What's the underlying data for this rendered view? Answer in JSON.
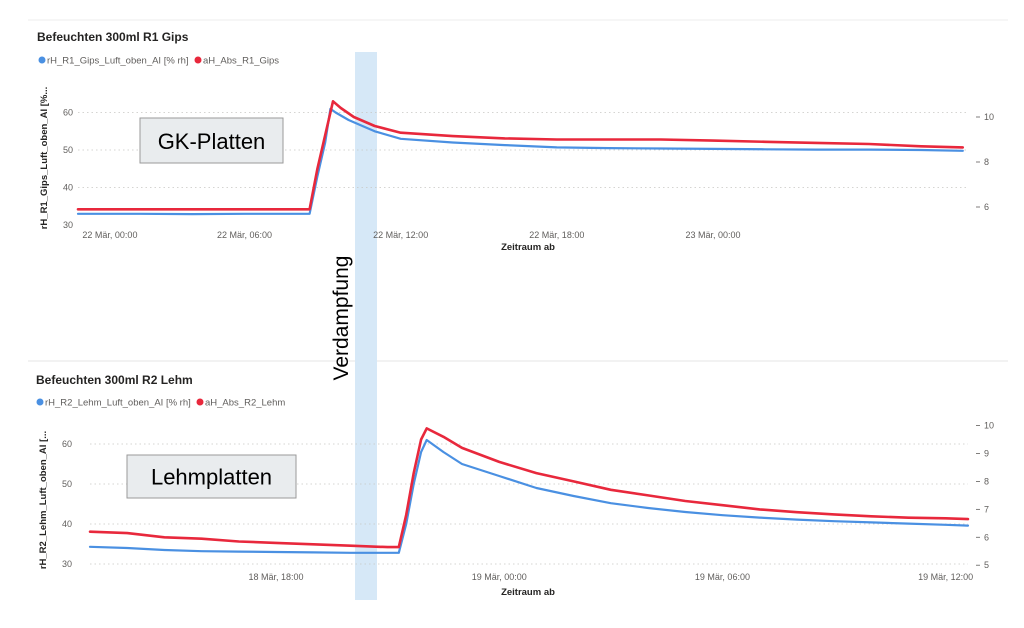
{
  "colors": {
    "rh": "#4a90e2",
    "ah": "#e8283c",
    "band": "#d6e8f7",
    "grid": "#c8c6c4",
    "label_box_bg": "#e9ecee",
    "label_box_border": "#9a9a9a"
  },
  "band_label": "Verdampfung",
  "chart_data": [
    {
      "type": "line",
      "title": "Befeuchten 300ml R1 Gips",
      "overlay_label": "GK-Platten",
      "xlabel": "Zeitraum ab",
      "ylabel": "rH_R1_Gips_Luft_oben_AI [%...",
      "x_unit": "hours since 22 Mär, 00:00",
      "xlim": [
        -0.4,
        33.8
      ],
      "x_ticks": [
        {
          "x": 0,
          "label": "22 Mär, 00:00"
        },
        {
          "x": 6,
          "label": "22 Mär, 06:00"
        },
        {
          "x": 12,
          "label": "22 Mär, 12:00"
        },
        {
          "x": 18,
          "label": "22 Mär, 18:00"
        },
        {
          "x": 24,
          "label": "23 Mär, 00:00"
        }
      ],
      "ylim": [
        30,
        66
      ],
      "y_ticks": [
        30,
        40,
        50,
        60
      ],
      "y2lim": [
        5.2,
        11.2
      ],
      "y2_ticks": [
        6,
        8,
        10
      ],
      "band": [
        8.5,
        9.2
      ],
      "legend": [
        {
          "name": "rH_R1_Gips_Luft_oben_AI [% rh]",
          "color_key": "rh"
        },
        {
          "name": "aH_Abs_R1_Gips",
          "color_key": "ah"
        }
      ],
      "series": [
        {
          "name": "rH_R1_Gips_Luft_oben_AI [% rh]",
          "axis": "left",
          "color_key": "rh",
          "points": [
            [
              -0.4,
              33
            ],
            [
              2,
              33
            ],
            [
              4,
              32.9
            ],
            [
              6,
              33
            ],
            [
              8.5,
              33
            ],
            [
              8.8,
              43
            ],
            [
              9.1,
              52
            ],
            [
              9.3,
              61
            ],
            [
              9.5,
              60
            ],
            [
              10,
              58
            ],
            [
              11,
              55
            ],
            [
              12,
              53
            ],
            [
              14,
              52
            ],
            [
              16,
              51.3
            ],
            [
              18,
              50.7
            ],
            [
              20,
              50.5
            ],
            [
              22,
              50.4
            ],
            [
              24,
              50.3
            ],
            [
              26,
              50.2
            ],
            [
              28,
              50.1
            ],
            [
              30,
              50.1
            ],
            [
              32,
              50
            ],
            [
              33.6,
              49.8
            ]
          ]
        },
        {
          "name": "aH_Abs_R1_Gips",
          "axis": "right",
          "color_key": "ah",
          "points": [
            [
              -0.4,
              5.9
            ],
            [
              2,
              5.9
            ],
            [
              4,
              5.9
            ],
            [
              6,
              5.9
            ],
            [
              8.5,
              5.9
            ],
            [
              8.8,
              7.7
            ],
            [
              9.1,
              9.2
            ],
            [
              9.4,
              10.7
            ],
            [
              9.7,
              10.4
            ],
            [
              10.2,
              10
            ],
            [
              11,
              9.6
            ],
            [
              12,
              9.3
            ],
            [
              14,
              9.15
            ],
            [
              16,
              9.05
            ],
            [
              18,
              9.0
            ],
            [
              20,
              9.0
            ],
            [
              22,
              9.0
            ],
            [
              24,
              8.95
            ],
            [
              26,
              8.9
            ],
            [
              28,
              8.85
            ],
            [
              30,
              8.8
            ],
            [
              32,
              8.7
            ],
            [
              33.6,
              8.65
            ]
          ]
        }
      ]
    },
    {
      "type": "line",
      "title": "Befeuchten 300ml R2 Lehm",
      "overlay_label": "Lehmplatten",
      "xlabel": "Zeitraum ab",
      "ylabel": "rH_R2_Lehm_Luft_oben_AI [...",
      "x_unit": "hours since 18 Mär, 12:00",
      "xlim": [
        1,
        24.6
      ],
      "x_ticks": [
        {
          "x": 6,
          "label": "18 Mär, 18:00"
        },
        {
          "x": 12,
          "label": "19 Mär, 00:00"
        },
        {
          "x": 18,
          "label": "19 Mär, 06:00"
        },
        {
          "x": 24,
          "label": "19 Mär, 12:00"
        }
      ],
      "ylim": [
        29,
        66
      ],
      "y_ticks": [
        30,
        40,
        50,
        60
      ],
      "y2lim": [
        4.9,
        10.2
      ],
      "y2_ticks": [
        5,
        6,
        7,
        8,
        9,
        10
      ],
      "band": [
        9.3,
        9.95
      ],
      "legend": [
        {
          "name": "rH_R2_Lehm_Luft_oben_AI [% rh]",
          "color_key": "rh"
        },
        {
          "name": "aH_Abs_R2_Lehm",
          "color_key": "ah"
        }
      ],
      "series": [
        {
          "name": "rH_R2_Lehm_Luft_oben_AI [% rh]",
          "axis": "left",
          "color_key": "rh",
          "points": [
            [
              1,
              34.3
            ],
            [
              2,
              34
            ],
            [
              3,
              33.5
            ],
            [
              4,
              33.2
            ],
            [
              5,
              33.1
            ],
            [
              6,
              33
            ],
            [
              7,
              32.9
            ],
            [
              8,
              32.8
            ],
            [
              9,
              32.8
            ],
            [
              9.3,
              32.8
            ],
            [
              9.5,
              40
            ],
            [
              9.7,
              50
            ],
            [
              9.9,
              58
            ],
            [
              10.05,
              61
            ],
            [
              10.5,
              58
            ],
            [
              11,
              55
            ],
            [
              12,
              52
            ],
            [
              13,
              49
            ],
            [
              14,
              47
            ],
            [
              15,
              45.2
            ],
            [
              16,
              44
            ],
            [
              17,
              43
            ],
            [
              18,
              42.2
            ],
            [
              19,
              41.6
            ],
            [
              20,
              41.1
            ],
            [
              21,
              40.7
            ],
            [
              22,
              40.4
            ],
            [
              23,
              40.1
            ],
            [
              24,
              39.8
            ],
            [
              24.6,
              39.6
            ]
          ]
        },
        {
          "name": "aH_Abs_R2_Lehm",
          "axis": "right",
          "color_key": "ah",
          "points": [
            [
              1,
              6.2
            ],
            [
              2,
              6.15
            ],
            [
              3,
              6.0
            ],
            [
              4,
              5.95
            ],
            [
              5,
              5.85
            ],
            [
              6,
              5.8
            ],
            [
              7,
              5.75
            ],
            [
              8,
              5.7
            ],
            [
              9,
              5.65
            ],
            [
              9.3,
              5.65
            ],
            [
              9.5,
              6.8
            ],
            [
              9.7,
              8.3
            ],
            [
              9.9,
              9.5
            ],
            [
              10.05,
              9.9
            ],
            [
              10.5,
              9.6
            ],
            [
              11,
              9.2
            ],
            [
              12,
              8.7
            ],
            [
              13,
              8.3
            ],
            [
              14,
              8.0
            ],
            [
              15,
              7.7
            ],
            [
              16,
              7.5
            ],
            [
              17,
              7.3
            ],
            [
              18,
              7.15
            ],
            [
              19,
              7.0
            ],
            [
              20,
              6.9
            ],
            [
              21,
              6.82
            ],
            [
              22,
              6.75
            ],
            [
              23,
              6.7
            ],
            [
              24,
              6.68
            ],
            [
              24.6,
              6.65
            ]
          ]
        }
      ]
    }
  ]
}
